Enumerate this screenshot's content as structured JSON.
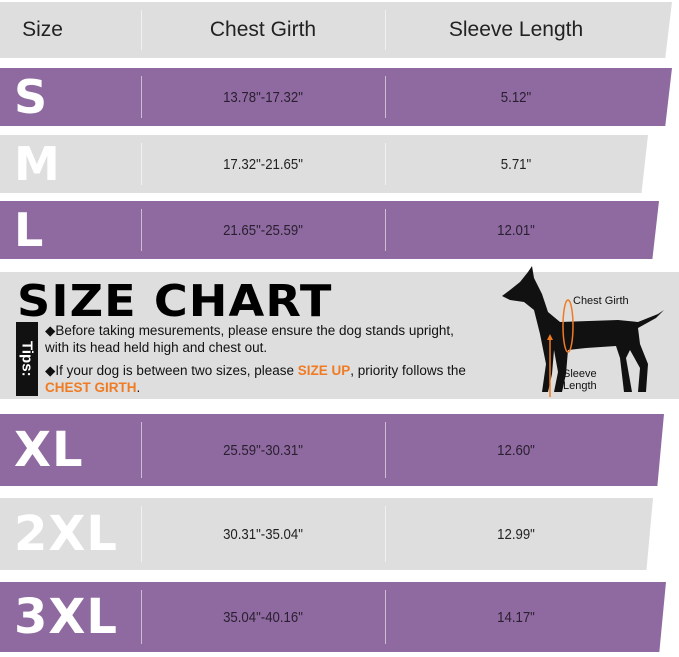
{
  "headers": [
    "Size",
    "Chest Girth",
    "Sleeve Length"
  ],
  "rows": [
    {
      "size": "S",
      "chest": "13.78\"-17.32\"",
      "sleeve": "5.12\""
    },
    {
      "size": "M",
      "chest": "17.32\"-21.65\"",
      "sleeve": "5.71\""
    },
    {
      "size": "L",
      "chest": "21.65\"-25.59\"",
      "sleeve": "12.01\""
    },
    {
      "size": "XL",
      "chest": "25.59\"-30.31\"",
      "sleeve": "12.60\""
    },
    {
      "size": "2XL",
      "chest": "30.31\"-35.04\"",
      "sleeve": "12.99\""
    },
    {
      "size": "3XL",
      "chest": "35.04\"-40.16\"",
      "sleeve": "14.17\""
    }
  ],
  "banner": {
    "title": "SIZE CHART",
    "tips_label": "Tips:",
    "tip1": "Before taking mesurements, please ensure the dog stands upright, with its head held high and chest out.",
    "tip2_a": "If your dog is between two sizes, please ",
    "tip2_b": "SIZE UP",
    "tip2_c": ", priority follows the ",
    "tip2_d": "CHEST GIRTH",
    "tip2_e": ".",
    "chest_label": "Chest Girth",
    "sleeve_label": "Sleeve Length"
  },
  "colors": {
    "purple": "#8f6aa0",
    "gray": "#dedede",
    "highlight": "#f07b22"
  }
}
